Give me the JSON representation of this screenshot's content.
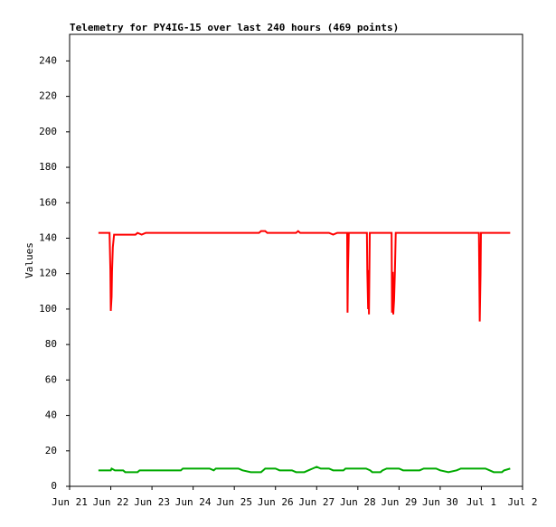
{
  "chart_data": {
    "type": "line",
    "title": "Telemetry for PY4IG-15 over last 240 hours (469 points)",
    "y_label": "Values",
    "xlim": [
      0,
      11
    ],
    "xticks": [
      {
        "value": 0,
        "label": "Jun 21"
      },
      {
        "value": 1,
        "label": "Jun 22"
      },
      {
        "value": 2,
        "label": "Jun 23"
      },
      {
        "value": 3,
        "label": "Jun 24"
      },
      {
        "value": 4,
        "label": "Jun 25"
      },
      {
        "value": 5,
        "label": "Jun 26"
      },
      {
        "value": 6,
        "label": "Jun 27"
      },
      {
        "value": 7,
        "label": "Jun 28"
      },
      {
        "value": 8,
        "label": "Jun 29"
      },
      {
        "value": 9,
        "label": "Jun 30"
      },
      {
        "value": 10,
        "label": "Jul 1"
      },
      {
        "value": 11,
        "label": "Jul 2"
      }
    ],
    "ylim": [
      0,
      255
    ],
    "yticks": [
      0,
      20,
      40,
      60,
      80,
      100,
      120,
      140,
      160,
      180,
      200,
      220,
      240
    ],
    "series": [
      {
        "color": "#ff0000",
        "x": [
          0.7,
          0.97,
          0.99,
          1.0,
          1.02,
          1.03,
          1.05,
          1.08,
          1.6,
          1.65,
          1.75,
          1.85,
          2.0,
          4.6,
          4.65,
          4.75,
          4.8,
          5.5,
          5.55,
          5.6,
          6.3,
          6.4,
          6.5,
          6.74,
          6.75,
          6.76,
          6.78,
          7.22,
          7.23,
          7.25,
          7.26,
          7.27,
          7.29,
          7.82,
          7.83,
          7.85,
          7.86,
          7.88,
          7.9,
          7.92,
          9.94,
          9.95,
          9.96,
          9.98,
          9.99,
          10.7
        ],
        "values": [
          143,
          143,
          122,
          99,
          107,
          121,
          135,
          142,
          142,
          143,
          142,
          143,
          143,
          143,
          144,
          144,
          143,
          143,
          144,
          143,
          143,
          142,
          143,
          143,
          98,
          121,
          143,
          143,
          121,
          100,
          122,
          97,
          143,
          143,
          98,
          121,
          97,
          105,
          121,
          143,
          143,
          118,
          93,
          120,
          143,
          143
        ]
      },
      {
        "color": "#00aa00",
        "x": [
          0.7,
          1.0,
          1.02,
          1.1,
          1.3,
          1.35,
          1.65,
          1.7,
          2.7,
          2.75,
          3.4,
          3.5,
          3.55,
          4.1,
          4.2,
          4.4,
          4.65,
          4.7,
          4.75,
          5.0,
          5.1,
          5.4,
          5.5,
          5.7,
          5.8,
          5.9,
          6.0,
          6.1,
          6.3,
          6.4,
          6.65,
          6.7,
          7.2,
          7.3,
          7.35,
          7.55,
          7.6,
          7.7,
          8.0,
          8.1,
          8.5,
          8.6,
          8.9,
          9.0,
          9.2,
          9.4,
          9.5,
          10.1,
          10.2,
          10.3,
          10.5,
          10.55,
          10.7
        ],
        "values": [
          9,
          9,
          10,
          9,
          9,
          8,
          8,
          9,
          9,
          10,
          10,
          9,
          10,
          10,
          9,
          8,
          8,
          9,
          10,
          10,
          9,
          9,
          8,
          8,
          9,
          10,
          11,
          10,
          10,
          9,
          9,
          10,
          10,
          9,
          8,
          8,
          9,
          10,
          10,
          9,
          9,
          10,
          10,
          9,
          8,
          9,
          10,
          10,
          9,
          8,
          8,
          9,
          10
        ]
      }
    ]
  }
}
